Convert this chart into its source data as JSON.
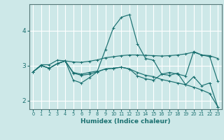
{
  "xlabel": "Humidex (Indice chaleur)",
  "background_color": "#cde8e8",
  "grid_color": "#ffffff",
  "line_color": "#1a7070",
  "xlim": [
    -0.5,
    23.5
  ],
  "ylim": [
    1.75,
    4.75
  ],
  "yticks": [
    2,
    3,
    4
  ],
  "xtick_labels": [
    "0",
    "1",
    "2",
    "3",
    "4",
    "5",
    "6",
    "7",
    "8",
    "9",
    "10",
    "11",
    "12",
    "13",
    "14",
    "15",
    "16",
    "17",
    "18",
    "19",
    "20",
    "21",
    "22",
    "23"
  ],
  "series": [
    [
      2.82,
      3.02,
      3.02,
      3.15,
      3.13,
      2.8,
      2.75,
      2.8,
      2.84,
      3.45,
      4.08,
      4.38,
      4.45,
      3.62,
      3.2,
      3.15,
      2.75,
      2.8,
      2.75,
      2.7,
      3.4,
      3.3,
      3.25,
      2.55
    ],
    [
      2.82,
      3.0,
      2.92,
      3.05,
      3.13,
      3.1,
      3.09,
      3.12,
      3.16,
      3.22,
      3.25,
      3.28,
      3.3,
      3.3,
      3.29,
      3.28,
      3.27,
      3.28,
      3.3,
      3.33,
      3.38,
      3.3,
      3.28,
      3.2
    ],
    [
      2.82,
      3.0,
      2.92,
      3.05,
      3.13,
      2.78,
      2.72,
      2.75,
      2.82,
      2.9,
      2.92,
      2.95,
      2.9,
      2.8,
      2.72,
      2.68,
      2.6,
      2.55,
      2.5,
      2.45,
      2.38,
      2.3,
      2.2,
      1.82
    ],
    [
      2.82,
      3.0,
      2.92,
      3.05,
      3.13,
      2.58,
      2.5,
      2.65,
      2.82,
      2.9,
      2.92,
      2.95,
      2.9,
      2.7,
      2.62,
      2.58,
      2.75,
      2.72,
      2.78,
      2.45,
      2.68,
      2.42,
      2.5,
      1.82
    ]
  ]
}
